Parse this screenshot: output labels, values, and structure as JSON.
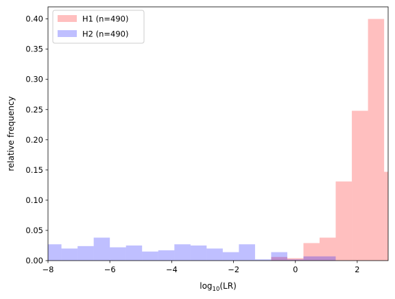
{
  "chart_data": {
    "type": "bar",
    "subtype": "overlapping-histogram",
    "title": "",
    "xlabel": {
      "prefix": "log",
      "subscript": "10",
      "suffix": "(LR)"
    },
    "ylabel": "relative frequency",
    "xlim": [
      -8,
      3
    ],
    "ylim": [
      0,
      0.42
    ],
    "x_ticks": [
      {
        "value": -8,
        "label": "−8"
      },
      {
        "value": -6,
        "label": "−6"
      },
      {
        "value": -4,
        "label": "−4"
      },
      {
        "value": -2,
        "label": "−2"
      },
      {
        "value": 0,
        "label": "0"
      },
      {
        "value": 2,
        "label": "2"
      }
    ],
    "y_ticks": [
      {
        "value": 0.0,
        "label": "0.00"
      },
      {
        "value": 0.05,
        "label": "0.05"
      },
      {
        "value": 0.1,
        "label": "0.10"
      },
      {
        "value": 0.15,
        "label": "0.15"
      },
      {
        "value": 0.2,
        "label": "0.20"
      },
      {
        "value": 0.25,
        "label": "0.25"
      },
      {
        "value": 0.3,
        "label": "0.30"
      },
      {
        "value": 0.35,
        "label": "0.35"
      },
      {
        "value": 0.4,
        "label": "0.40"
      }
    ],
    "grid": false,
    "legend_position": "top-left",
    "series": [
      {
        "name": "H1 (n=490)",
        "color": "#ff0000",
        "alpha": 0.25,
        "bins": [
          {
            "x0": -0.783,
            "x1": -0.261,
            "value": 0.006
          },
          {
            "x0": -0.261,
            "x1": 0.261,
            "value": 0.004
          },
          {
            "x0": 0.261,
            "x1": 0.783,
            "value": 0.029
          },
          {
            "x0": 0.783,
            "x1": 1.304,
            "value": 0.038
          },
          {
            "x0": 1.304,
            "x1": 1.826,
            "value": 0.131
          },
          {
            "x0": 1.826,
            "x1": 2.348,
            "value": 0.248
          },
          {
            "x0": 2.348,
            "x1": 2.87,
            "value": 0.4
          },
          {
            "x0": 2.87,
            "x1": 3.391,
            "value": 0.147
          }
        ]
      },
      {
        "name": "H2 (n=490)",
        "color": "#0000ff",
        "alpha": 0.25,
        "bins": [
          {
            "x0": -8.087,
            "x1": -7.565,
            "value": 0.027
          },
          {
            "x0": -7.565,
            "x1": -7.043,
            "value": 0.02
          },
          {
            "x0": -7.043,
            "x1": -6.522,
            "value": 0.024
          },
          {
            "x0": -6.522,
            "x1": -6.0,
            "value": 0.038
          },
          {
            "x0": -6.0,
            "x1": -5.478,
            "value": 0.022
          },
          {
            "x0": -5.478,
            "x1": -4.957,
            "value": 0.025
          },
          {
            "x0": -4.957,
            "x1": -4.435,
            "value": 0.015
          },
          {
            "x0": -4.435,
            "x1": -3.913,
            "value": 0.017
          },
          {
            "x0": -3.913,
            "x1": -3.391,
            "value": 0.027
          },
          {
            "x0": -3.391,
            "x1": -2.87,
            "value": 0.025
          },
          {
            "x0": -2.87,
            "x1": -2.348,
            "value": 0.02
          },
          {
            "x0": -2.348,
            "x1": -1.826,
            "value": 0.014
          },
          {
            "x0": -1.826,
            "x1": -1.304,
            "value": 0.027
          },
          {
            "x0": -1.304,
            "x1": -0.783,
            "value": 0.002
          },
          {
            "x0": -0.783,
            "x1": -0.261,
            "value": 0.014
          },
          {
            "x0": -0.261,
            "x1": 0.261,
            "value": 0.002
          },
          {
            "x0": 0.261,
            "x1": 0.783,
            "value": 0.007
          },
          {
            "x0": 0.783,
            "x1": 1.304,
            "value": 0.007
          }
        ]
      }
    ]
  }
}
